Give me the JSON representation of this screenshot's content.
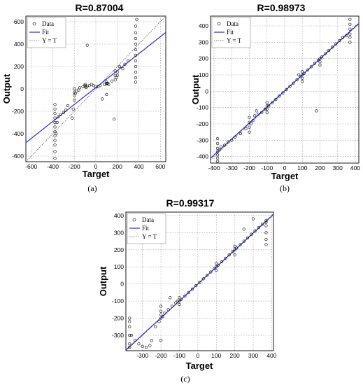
{
  "chart_data": [
    {
      "type": "scatter",
      "title": "R=0.87004",
      "xlabel": "Target",
      "ylabel": "Output",
      "caption": "(a)",
      "xlim": [
        -650,
        650
      ],
      "ylim": [
        -650,
        650
      ],
      "xticks": [
        -600,
        -400,
        -200,
        0,
        200,
        400,
        600
      ],
      "yticks": [
        -600,
        -400,
        -200,
        0,
        200,
        400,
        600
      ],
      "grid": true,
      "legend": {
        "placement": "top-left",
        "entries": [
          "Data",
          "Fit",
          "Y = T"
        ]
      },
      "fit": {
        "slope": 0.757,
        "intercept": 12
      },
      "colors": {
        "fit": "#2b2bd6",
        "data": "#000000",
        "identity": "#555555"
      },
      "series": [
        {
          "x": [
            -380,
            -380,
            -380,
            -380,
            -380,
            -380,
            -380,
            -380,
            -380,
            -380,
            -380,
            -380,
            -370,
            -360,
            -350,
            -330,
            -300,
            -280,
            -260,
            -220,
            -210,
            -200,
            -200,
            -200,
            -200,
            -190,
            -180,
            -160,
            -150,
            -120,
            -100,
            -100,
            -100,
            -90,
            -80,
            -60,
            -40,
            -20,
            0,
            20,
            40,
            80,
            100,
            100,
            100,
            110,
            120,
            150,
            180,
            180,
            180,
            190,
            200,
            200,
            220,
            250,
            270,
            300,
            370,
            370,
            370,
            370,
            370,
            370,
            370,
            370,
            370,
            370,
            370,
            380,
            -80,
            100,
            170,
            60
          ],
          "y": [
            -620,
            -560,
            -500,
            -460,
            -420,
            -380,
            -340,
            -300,
            -260,
            -220,
            -180,
            -140,
            -400,
            -300,
            -250,
            -230,
            -210,
            -190,
            -150,
            -260,
            -180,
            -100,
            -60,
            -30,
            0,
            -40,
            -20,
            -10,
            10,
            20,
            20,
            30,
            40,
            15,
            25,
            30,
            40,
            30,
            20,
            20,
            30,
            40,
            45,
            50,
            60,
            50,
            40,
            70,
            80,
            120,
            160,
            100,
            120,
            150,
            200,
            180,
            220,
            250,
            60,
            100,
            150,
            200,
            250,
            300,
            350,
            400,
            450,
            500,
            560,
            620,
            390,
            -50,
            -270,
            -90
          ]
        }
      ]
    },
    {
      "type": "scatter",
      "title": "R=0.98973",
      "xlabel": "Target",
      "ylabel": "Output",
      "caption": "(b)",
      "xlim": [
        -420,
        420
      ],
      "ylim": [
        -440,
        460
      ],
      "xticks": [
        -400,
        -300,
        -200,
        -100,
        0,
        100,
        200,
        300,
        400
      ],
      "yticks": [
        -400,
        -300,
        -200,
        -100,
        0,
        100,
        200,
        300,
        400
      ],
      "grid": true,
      "legend": {
        "placement": "top-left",
        "entries": [
          "Data",
          "Fit",
          "Y = T"
        ]
      },
      "fit": {
        "slope": 0.98,
        "intercept": 2
      },
      "colors": {
        "fit": "#2b2bd6",
        "data": "#000000",
        "identity": "#555555"
      },
      "series": [
        {
          "x": [
            -380,
            -380,
            -380,
            -380,
            -380,
            -380,
            -380,
            -370,
            -360,
            -340,
            -320,
            -300,
            -280,
            -250,
            -220,
            -200,
            -200,
            -200,
            -200,
            -190,
            -180,
            -170,
            -150,
            -130,
            -110,
            -100,
            -100,
            -100,
            -100,
            -90,
            -70,
            -50,
            -30,
            -10,
            10,
            30,
            50,
            70,
            90,
            100,
            100,
            100,
            100,
            110,
            130,
            150,
            170,
            190,
            200,
            200,
            200,
            210,
            230,
            250,
            270,
            290,
            310,
            330,
            350,
            370,
            370,
            370,
            370,
            370,
            370,
            -160,
            80,
            180
          ],
          "y": [
            -430,
            -410,
            -390,
            -370,
            -350,
            -320,
            -290,
            -360,
            -340,
            -330,
            -310,
            -300,
            -280,
            -260,
            -230,
            -250,
            -220,
            -190,
            -160,
            -200,
            -180,
            -150,
            -140,
            -130,
            -110,
            -130,
            -110,
            -90,
            -70,
            -90,
            -70,
            -50,
            -30,
            -10,
            10,
            30,
            50,
            70,
            90,
            60,
            80,
            100,
            120,
            110,
            130,
            150,
            170,
            190,
            160,
            180,
            200,
            210,
            230,
            250,
            270,
            290,
            310,
            330,
            340,
            300,
            330,
            350,
            380,
            410,
            440,
            -120,
            100,
            -120
          ]
        }
      ]
    },
    {
      "type": "scatter",
      "title": "R=0.99317",
      "xlabel": "Target",
      "ylabel": "Output",
      "caption": "(c)",
      "xlim": [
        -390,
        410
      ],
      "ylim": [
        -390,
        420
      ],
      "xticks": [
        -300,
        -200,
        -100,
        0,
        100,
        200,
        300,
        400
      ],
      "yticks": [
        -300,
        -200,
        -100,
        0,
        100,
        200,
        300,
        400
      ],
      "grid": true,
      "legend": {
        "placement": "top-left",
        "entries": [
          "Data",
          "Fit",
          "Y = T"
        ]
      },
      "fit": {
        "slope": 0.99,
        "intercept": 0
      },
      "colors": {
        "fit": "#2b2bd6",
        "data": "#000000",
        "identity": "#555555"
      },
      "series": [
        {
          "x": [
            -370,
            -370,
            -370,
            -370,
            -370,
            -370,
            -360,
            -340,
            -320,
            -300,
            -280,
            -260,
            -230,
            -210,
            -200,
            -200,
            -200,
            -200,
            -190,
            -180,
            -160,
            -140,
            -120,
            -110,
            -100,
            -100,
            -100,
            -90,
            -70,
            -50,
            -30,
            -10,
            10,
            30,
            50,
            70,
            90,
            100,
            100,
            100,
            110,
            130,
            150,
            170,
            190,
            200,
            200,
            200,
            210,
            230,
            250,
            270,
            290,
            310,
            330,
            350,
            370,
            370,
            370,
            370,
            370,
            370,
            -250,
            -200,
            -150,
            250,
            300
          ],
          "y": [
            -370,
            -350,
            -300,
            -250,
            -220,
            -200,
            -300,
            -330,
            -350,
            -365,
            -370,
            -360,
            -250,
            -220,
            -180,
            -200,
            -160,
            -130,
            -190,
            -170,
            -150,
            -130,
            -110,
            -100,
            -120,
            -100,
            -80,
            -90,
            -70,
            -50,
            -30,
            -10,
            10,
            30,
            50,
            70,
            90,
            80,
            100,
            120,
            110,
            130,
            150,
            170,
            190,
            170,
            200,
            220,
            210,
            230,
            250,
            270,
            290,
            310,
            330,
            350,
            360,
            340,
            370,
            300,
            260,
            230,
            -330,
            -330,
            -80,
            320,
            380
          ]
        }
      ]
    }
  ]
}
